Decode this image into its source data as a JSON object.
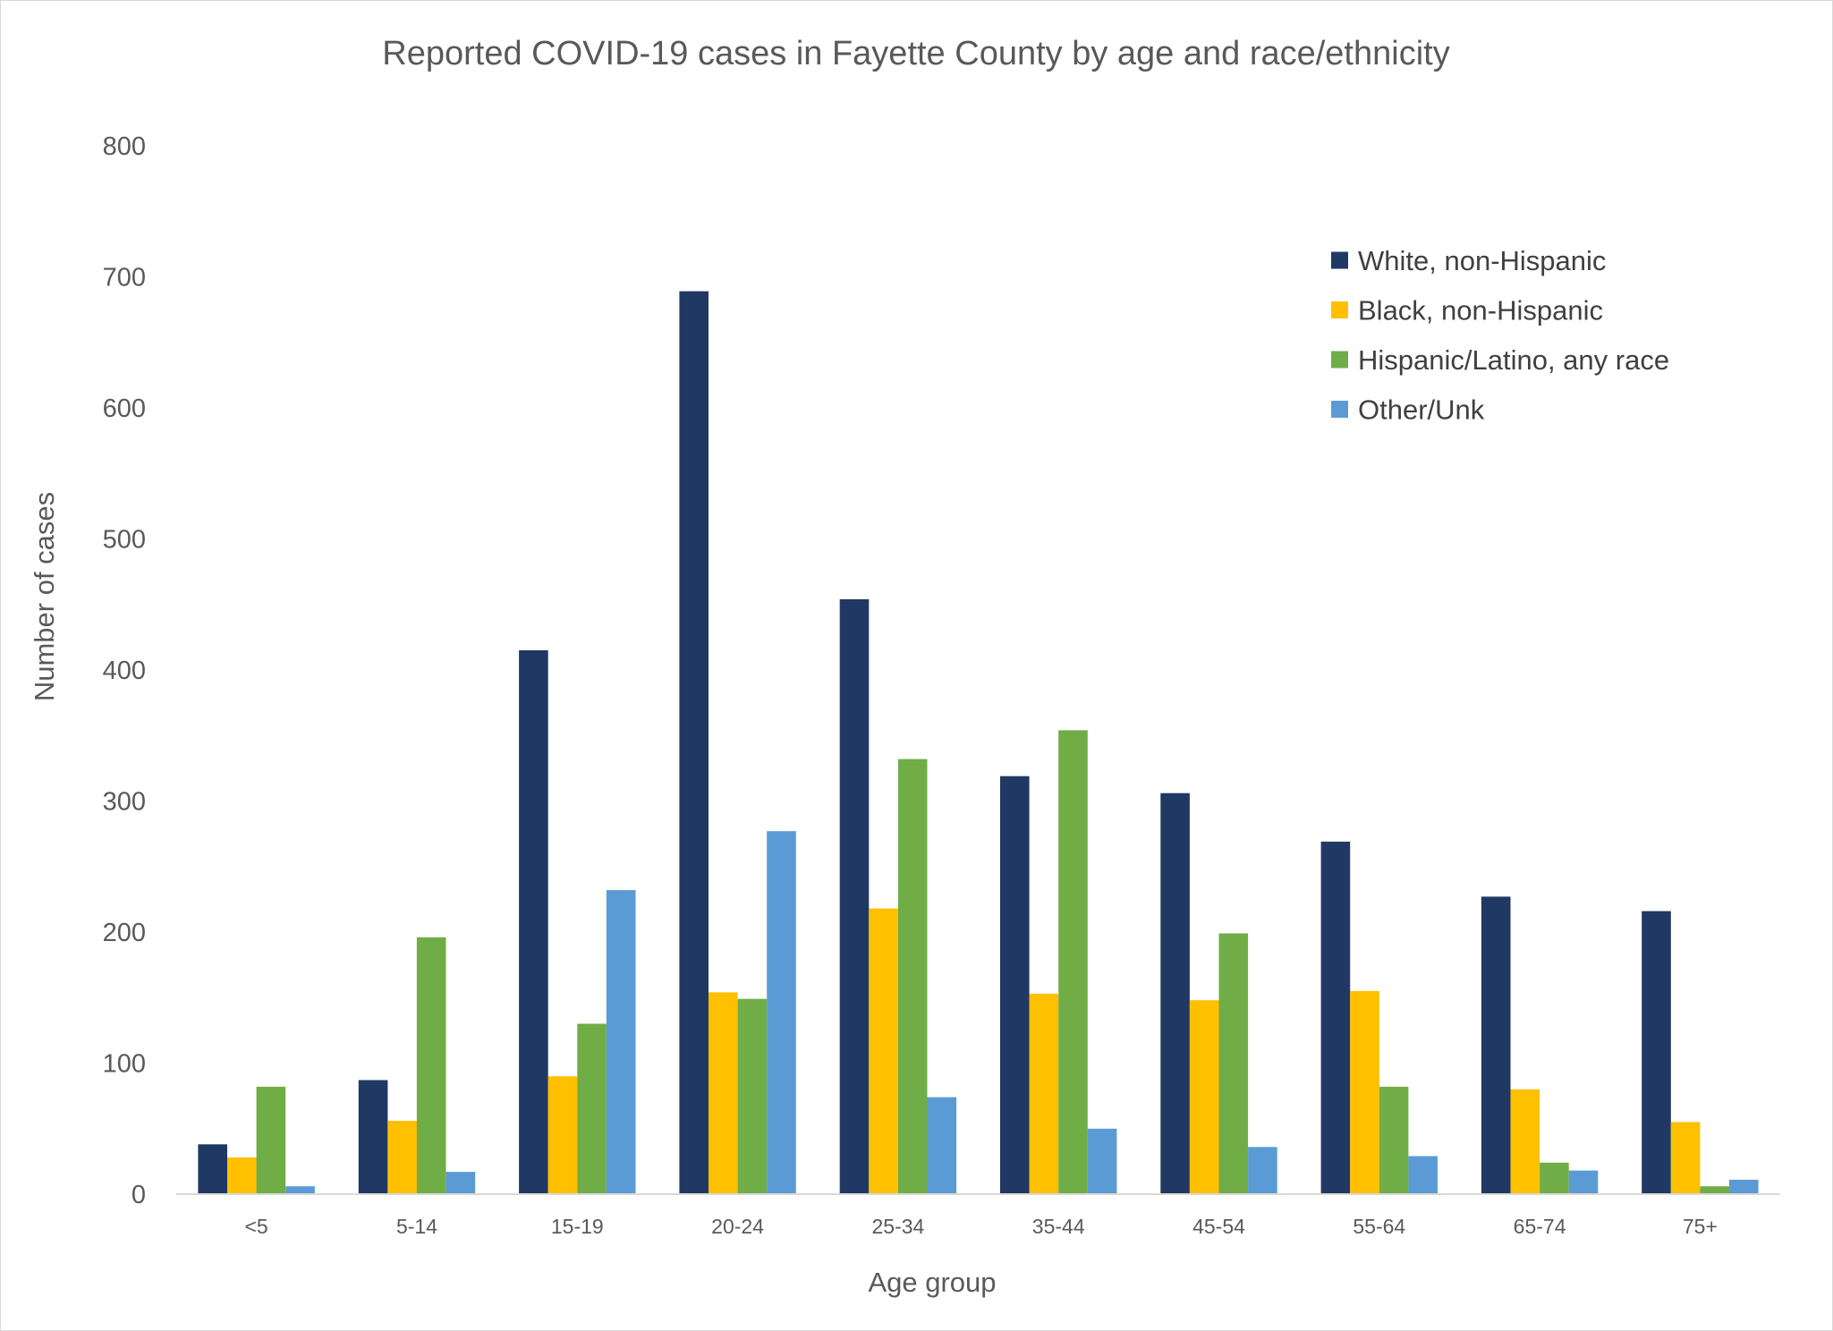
{
  "chart_data": {
    "type": "bar",
    "title": "Reported COVID-19 cases in Fayette County by age and race/ethnicity",
    "xlabel": "Age group",
    "ylabel": "Number of cases",
    "ylim": [
      0,
      800
    ],
    "yticks": [
      "0",
      "100",
      "200",
      "300",
      "400",
      "500",
      "600",
      "700",
      "800"
    ],
    "grid": false,
    "legend_position": "top-right",
    "categories": [
      "<5",
      "5-14",
      "15-19",
      "20-24",
      "25-34",
      "35-44",
      "45-54",
      "55-64",
      "65-74",
      "75+"
    ],
    "series": [
      {
        "name": "White, non-Hispanic",
        "color": "#203864",
        "values": [
          38,
          87,
          415,
          689,
          454,
          319,
          306,
          269,
          227,
          216
        ]
      },
      {
        "name": "Black, non-Hispanic",
        "color": "#FFC000",
        "values": [
          28,
          56,
          90,
          154,
          218,
          153,
          148,
          155,
          80,
          55
        ]
      },
      {
        "name": "Hispanic/Latino, any race",
        "color": "#70AD47",
        "values": [
          82,
          196,
          130,
          149,
          332,
          354,
          199,
          82,
          24,
          6
        ]
      },
      {
        "name": "Other/Unk",
        "color": "#5B9BD5",
        "values": [
          6,
          17,
          232,
          277,
          74,
          50,
          36,
          29,
          18,
          11
        ]
      }
    ]
  }
}
